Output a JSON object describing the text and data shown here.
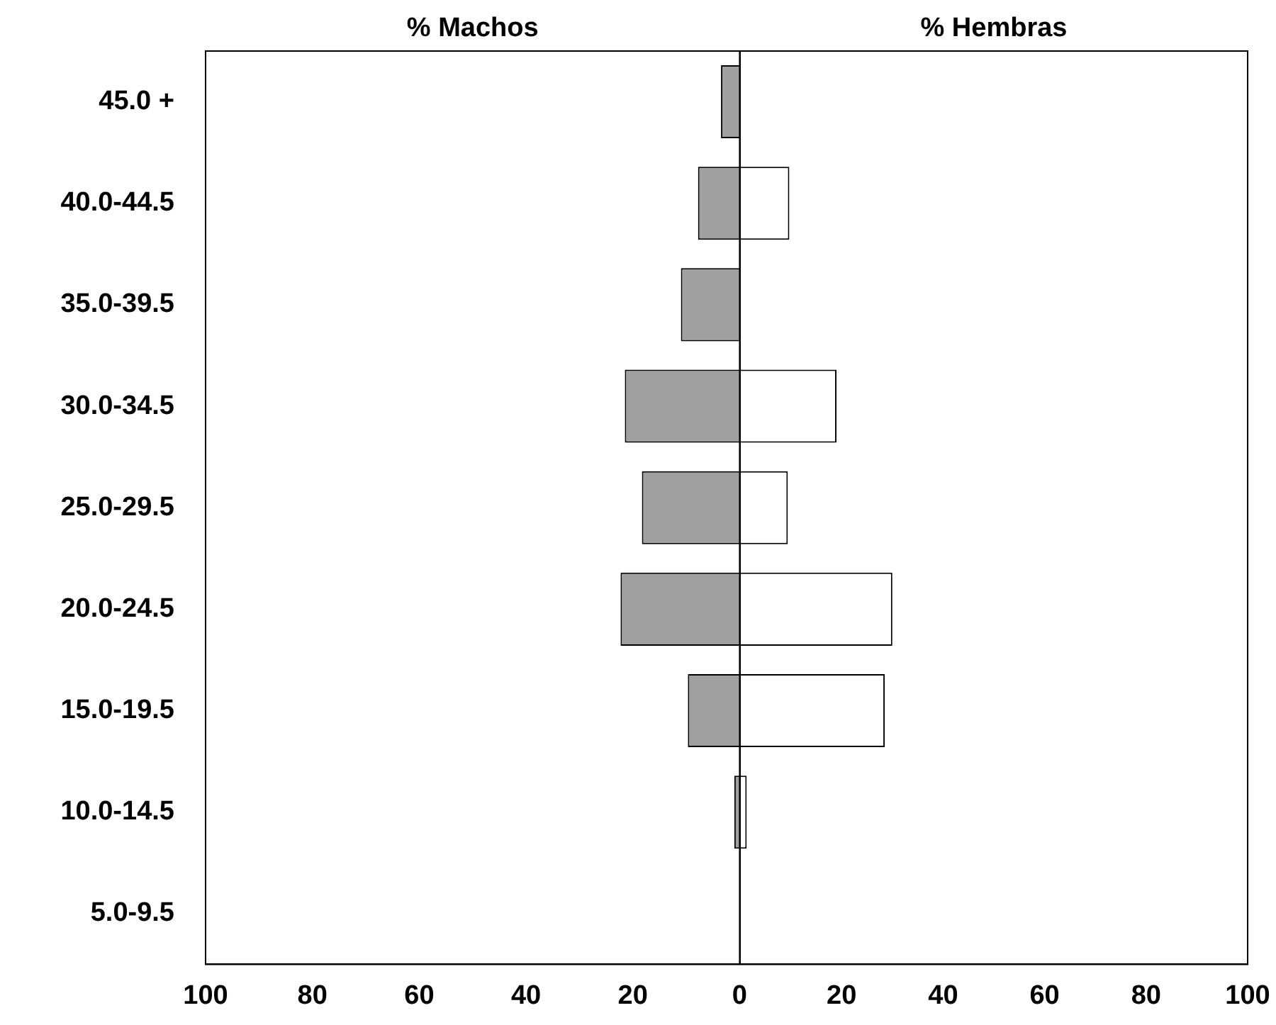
{
  "chart_data": [
    {
      "type": "bar",
      "orientation": "horizontal",
      "title": "% Machos",
      "categories": [
        "45.0 +",
        "40.0-44.5",
        "35.0-39.5",
        "30.0-34.5",
        "25.0-29.5",
        "20.0-24.5",
        "15.0-19.5",
        "10.0-14.5",
        "5.0-9.5"
      ],
      "series": [
        {
          "color": "#a0a0a0",
          "values": [
            3.5,
            7.8,
            11,
            21.5,
            18.3,
            22.3,
            9.7,
            1,
            0
          ]
        }
      ],
      "xlim": [
        100,
        0
      ],
      "xticks": [
        100,
        80,
        60,
        40,
        20,
        0
      ],
      "grid": false
    },
    {
      "type": "bar",
      "orientation": "horizontal",
      "title": "% Hembras",
      "tick_labels": "x",
      "categories": [
        null,
        null,
        null,
        null,
        null,
        null,
        null,
        null,
        null
      ],
      "series": [
        {
          "color": "#ffffff",
          "values": [
            0,
            9.7,
            0,
            19,
            9.4,
            30,
            28.5,
            1.3,
            0
          ]
        }
      ],
      "xlim": [
        0,
        100
      ],
      "xticks": [
        20,
        40,
        60,
        80,
        100
      ],
      "grid": false
    }
  ]
}
